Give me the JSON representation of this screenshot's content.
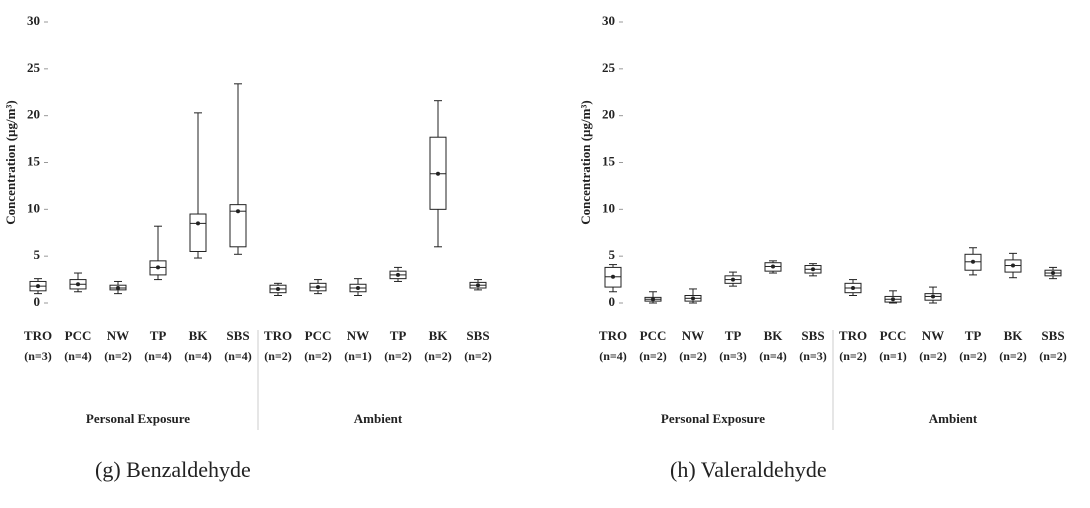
{
  "chart_data": [
    {
      "type": "box",
      "caption": "(g) Benzaldehyde",
      "ylabel": "Concentration (µg/m³)",
      "ylim": [
        0,
        30
      ],
      "yticks": [
        0,
        5,
        10,
        15,
        20,
        25,
        30
      ],
      "categories": [
        "TRO",
        "PCC",
        "NW",
        "TP",
        "BK",
        "SBS",
        "TRO",
        "PCC",
        "NW",
        "TP",
        "BK",
        "SBS"
      ],
      "n_labels": [
        "(n=3)",
        "(n=4)",
        "(n=2)",
        "(n=4)",
        "(n=4)",
        "(n=4)",
        "(n=2)",
        "(n=2)",
        "(n=1)",
        "(n=2)",
        "(n=2)",
        "(n=2)"
      ],
      "groups": [
        "Personal Exposure",
        "Ambient"
      ],
      "boxes": [
        {
          "min": 1.0,
          "q1": 1.3,
          "median": 1.8,
          "q3": 2.3,
          "max": 2.6
        },
        {
          "min": 1.2,
          "q1": 1.5,
          "median": 2.0,
          "q3": 2.5,
          "max": 3.2
        },
        {
          "min": 1.0,
          "q1": 1.4,
          "median": 1.6,
          "q3": 1.9,
          "max": 2.3
        },
        {
          "min": 2.5,
          "q1": 3.0,
          "median": 3.8,
          "q3": 4.5,
          "max": 8.2
        },
        {
          "min": 4.8,
          "q1": 5.5,
          "median": 8.5,
          "q3": 9.5,
          "max": 20.3
        },
        {
          "min": 5.2,
          "q1": 6.0,
          "median": 9.8,
          "q3": 10.5,
          "max": 23.4
        },
        {
          "min": 0.8,
          "q1": 1.1,
          "median": 1.5,
          "q3": 1.9,
          "max": 2.1
        },
        {
          "min": 1.0,
          "q1": 1.3,
          "median": 1.7,
          "q3": 2.1,
          "max": 2.5
        },
        {
          "min": 0.8,
          "q1": 1.2,
          "median": 1.6,
          "q3": 2.0,
          "max": 2.6
        },
        {
          "min": 2.3,
          "q1": 2.6,
          "median": 3.0,
          "q3": 3.4,
          "max": 3.8
        },
        {
          "min": 6.0,
          "q1": 10.0,
          "median": 13.8,
          "q3": 17.7,
          "max": 21.6
        },
        {
          "min": 1.4,
          "q1": 1.6,
          "median": 1.9,
          "q3": 2.2,
          "max": 2.5
        }
      ]
    },
    {
      "type": "box",
      "caption": "(h) Valeraldehyde",
      "ylabel": "Concentration (µg/m³)",
      "ylim": [
        0,
        30
      ],
      "yticks": [
        0,
        5,
        10,
        15,
        20,
        25,
        30
      ],
      "categories": [
        "TRO",
        "PCC",
        "NW",
        "TP",
        "BK",
        "SBS",
        "TRO",
        "PCC",
        "NW",
        "TP",
        "BK",
        "SBS"
      ],
      "n_labels": [
        "(n=4)",
        "(n=2)",
        "(n=2)",
        "(n=3)",
        "(n=4)",
        "(n=3)",
        "(n=2)",
        "(n=1)",
        "(n=2)",
        "(n=2)",
        "(n=2)",
        "(n=2)"
      ],
      "groups": [
        "Personal Exposure",
        "Ambient"
      ],
      "boxes": [
        {
          "min": 1.2,
          "q1": 1.7,
          "median": 2.8,
          "q3": 3.8,
          "max": 4.1
        },
        {
          "min": 0.0,
          "q1": 0.2,
          "median": 0.4,
          "q3": 0.6,
          "max": 1.2
        },
        {
          "min": 0.0,
          "q1": 0.2,
          "median": 0.5,
          "q3": 0.8,
          "max": 1.5
        },
        {
          "min": 1.8,
          "q1": 2.1,
          "median": 2.5,
          "q3": 2.9,
          "max": 3.3
        },
        {
          "min": 3.2,
          "q1": 3.4,
          "median": 3.9,
          "q3": 4.3,
          "max": 4.5
        },
        {
          "min": 2.9,
          "q1": 3.2,
          "median": 3.6,
          "q3": 4.0,
          "max": 4.2
        },
        {
          "min": 0.8,
          "q1": 1.1,
          "median": 1.6,
          "q3": 2.1,
          "max": 2.5
        },
        {
          "min": 0.0,
          "q1": 0.1,
          "median": 0.4,
          "q3": 0.7,
          "max": 1.3
        },
        {
          "min": 0.0,
          "q1": 0.3,
          "median": 0.7,
          "q3": 1.0,
          "max": 1.7
        },
        {
          "min": 3.0,
          "q1": 3.5,
          "median": 4.4,
          "q3": 5.2,
          "max": 5.9
        },
        {
          "min": 2.7,
          "q1": 3.3,
          "median": 4.0,
          "q3": 4.6,
          "max": 5.3
        },
        {
          "min": 2.6,
          "q1": 2.9,
          "median": 3.2,
          "q3": 3.5,
          "max": 3.8
        }
      ]
    }
  ]
}
